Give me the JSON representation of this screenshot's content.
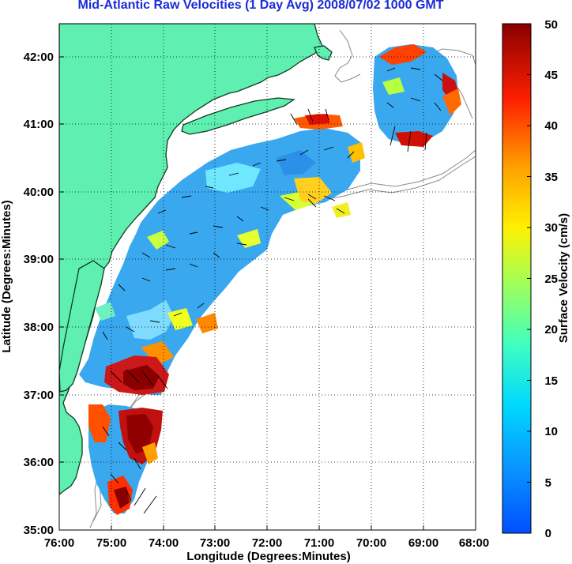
{
  "title": "Mid-Atlantic Raw Velocities (1 Day Avg) 2008/07/02 1000 GMT",
  "map": {
    "xlabel": "Longitude (Degrees:Minutes)",
    "ylabel": "Latitude (Degrees:Minutes)",
    "lon_range": [
      -76,
      -68
    ],
    "lat_range": [
      35,
      42.5
    ],
    "x_ticks": [
      "76:00",
      "75:00",
      "74:00",
      "73:00",
      "72:00",
      "71:00",
      "70:00",
      "69:00",
      "68:00"
    ],
    "y_ticks": [
      "35:00",
      "36:00",
      "37:00",
      "38:00",
      "39:00",
      "40:00",
      "41:00",
      "42:00"
    ],
    "grid": "dotted",
    "land_color": "#5fefb0",
    "coastline_color": "#1a3a1a",
    "bathymetry_color": "#8a8a8a",
    "vector_color": "#000000"
  },
  "colorbar": {
    "label": "Surface Velocity (cm/s)",
    "min": 0,
    "max": 50,
    "ticks": [
      "0",
      "5",
      "10",
      "15",
      "20",
      "25",
      "30",
      "35",
      "40",
      "45",
      "50"
    ],
    "colormap": "jet"
  }
}
